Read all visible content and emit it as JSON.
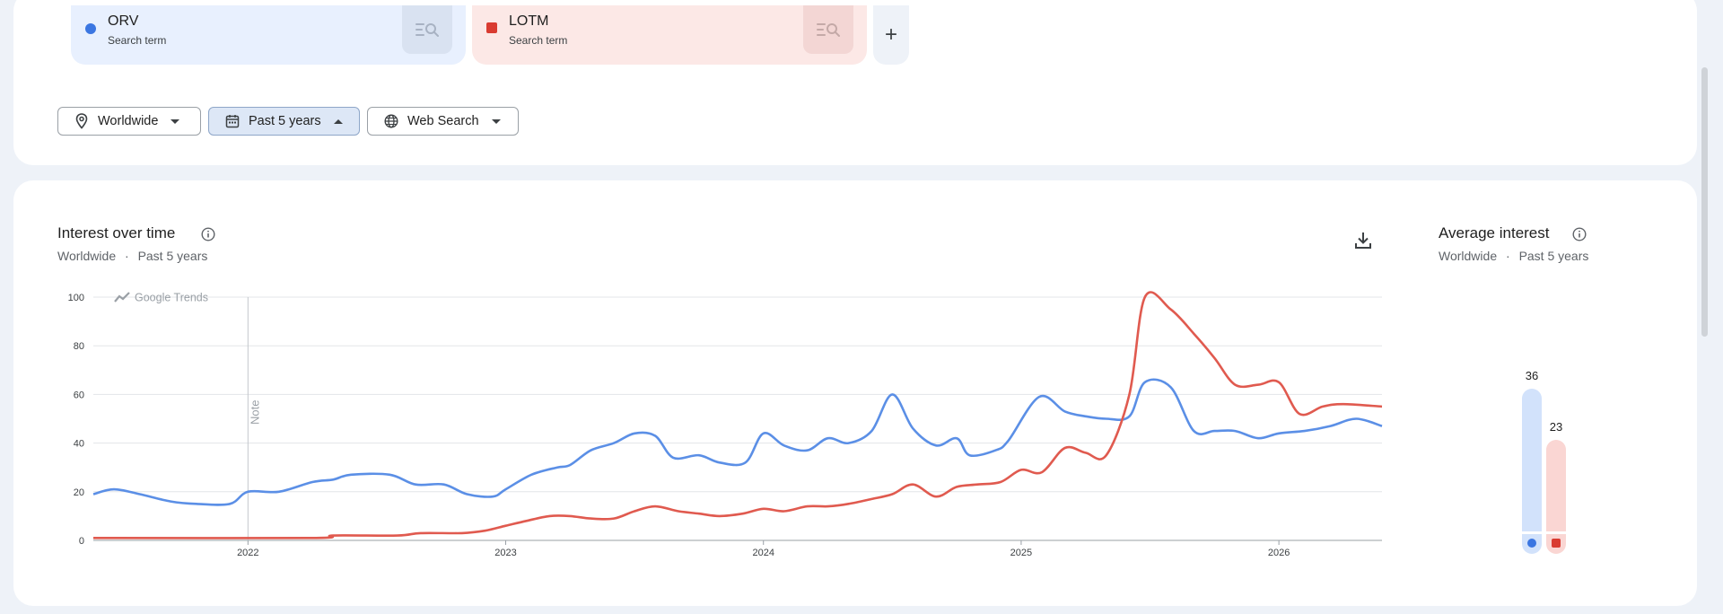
{
  "terms": [
    {
      "name": "ORV",
      "type": "Search term",
      "color": "#3b76e1"
    },
    {
      "name": "LOTM",
      "type": "Search term",
      "color": "#d93b31"
    }
  ],
  "add_term_label": "+",
  "filters": {
    "location": "Worldwide",
    "time_range": "Past 5 years",
    "property": "Web Search"
  },
  "interest_over_time": {
    "title": "Interest over time",
    "location": "Worldwide",
    "separator": "·",
    "time_range": "Past 5 years",
    "watermark": "Google Trends",
    "note_label": "Note",
    "icons": [
      "info-icon",
      "download-icon",
      "trend-logo-icon"
    ]
  },
  "average_interest": {
    "title": "Average interest",
    "location": "Worldwide",
    "separator": "·",
    "time_range": "Past 5 years",
    "values": [
      {
        "term": "ORV",
        "value": 36,
        "color": "#3b76e1",
        "bar_color": "#d2e2fb"
      },
      {
        "term": "LOTM",
        "value": 23,
        "color": "#d93b31",
        "bar_color": "#fad6d3"
      }
    ]
  },
  "chart_data": {
    "type": "line",
    "y_ticks": [
      0,
      20,
      40,
      60,
      80,
      100
    ],
    "ylim": [
      0,
      100
    ],
    "x_tick_labels": [
      "2022",
      "2023",
      "2024",
      "2025",
      "2026"
    ],
    "x_ticks": [
      2022.0,
      2023.0,
      2024.0,
      2025.0,
      2026.0
    ],
    "xlim": [
      2021.4,
      2026.4
    ],
    "note_x": 2022.0,
    "grid": true,
    "series": [
      {
        "name": "ORV",
        "color": "#5b8fe6",
        "points": [
          [
            2021.4,
            19
          ],
          [
            2021.48,
            21
          ],
          [
            2021.58,
            19
          ],
          [
            2021.7,
            16
          ],
          [
            2021.8,
            15
          ],
          [
            2021.93,
            15
          ],
          [
            2022.0,
            20
          ],
          [
            2022.12,
            20
          ],
          [
            2022.25,
            24
          ],
          [
            2022.33,
            25
          ],
          [
            2022.4,
            27
          ],
          [
            2022.55,
            27
          ],
          [
            2022.65,
            23
          ],
          [
            2022.76,
            23
          ],
          [
            2022.85,
            19
          ],
          [
            2022.95,
            18
          ],
          [
            2023.0,
            21
          ],
          [
            2023.1,
            27
          ],
          [
            2023.2,
            30
          ],
          [
            2023.25,
            31
          ],
          [
            2023.33,
            37
          ],
          [
            2023.42,
            40
          ],
          [
            2023.5,
            44
          ],
          [
            2023.58,
            43
          ],
          [
            2023.65,
            34
          ],
          [
            2023.75,
            35
          ],
          [
            2023.83,
            32
          ],
          [
            2023.93,
            32
          ],
          [
            2024.0,
            44
          ],
          [
            2024.08,
            39
          ],
          [
            2024.17,
            37
          ],
          [
            2024.25,
            42
          ],
          [
            2024.33,
            40
          ],
          [
            2024.42,
            45
          ],
          [
            2024.5,
            60
          ],
          [
            2024.58,
            46
          ],
          [
            2024.67,
            39
          ],
          [
            2024.75,
            42
          ],
          [
            2024.8,
            35
          ],
          [
            2024.9,
            37
          ],
          [
            2024.95,
            41
          ],
          [
            2025.07,
            59
          ],
          [
            2025.17,
            53
          ],
          [
            2025.25,
            51
          ],
          [
            2025.33,
            50
          ],
          [
            2025.42,
            51
          ],
          [
            2025.48,
            65
          ],
          [
            2025.58,
            63
          ],
          [
            2025.67,
            45
          ],
          [
            2025.75,
            45
          ],
          [
            2025.83,
            45
          ],
          [
            2025.92,
            42
          ],
          [
            2026.0,
            44
          ],
          [
            2026.1,
            45
          ],
          [
            2026.2,
            47
          ],
          [
            2026.3,
            50
          ],
          [
            2026.4,
            47
          ]
        ]
      },
      {
        "name": "LOTM",
        "color": "#e05a4f",
        "points": [
          [
            2021.4,
            1
          ],
          [
            2022.25,
            1
          ],
          [
            2022.33,
            2
          ],
          [
            2022.58,
            2
          ],
          [
            2022.67,
            3
          ],
          [
            2022.83,
            3
          ],
          [
            2022.92,
            4
          ],
          [
            2023.0,
            6
          ],
          [
            2023.08,
            8
          ],
          [
            2023.17,
            10
          ],
          [
            2023.25,
            10
          ],
          [
            2023.33,
            9
          ],
          [
            2023.42,
            9
          ],
          [
            2023.5,
            12
          ],
          [
            2023.58,
            14
          ],
          [
            2023.67,
            12
          ],
          [
            2023.75,
            11
          ],
          [
            2023.83,
            10
          ],
          [
            2023.92,
            11
          ],
          [
            2024.0,
            13
          ],
          [
            2024.08,
            12
          ],
          [
            2024.17,
            14
          ],
          [
            2024.25,
            14
          ],
          [
            2024.33,
            15
          ],
          [
            2024.42,
            17
          ],
          [
            2024.5,
            19
          ],
          [
            2024.58,
            23
          ],
          [
            2024.67,
            18
          ],
          [
            2024.75,
            22
          ],
          [
            2024.83,
            23
          ],
          [
            2024.92,
            24
          ],
          [
            2025.0,
            29
          ],
          [
            2025.08,
            28
          ],
          [
            2025.17,
            38
          ],
          [
            2025.25,
            36
          ],
          [
            2025.33,
            35
          ],
          [
            2025.42,
            60
          ],
          [
            2025.48,
            100
          ],
          [
            2025.58,
            95
          ],
          [
            2025.67,
            85
          ],
          [
            2025.75,
            75
          ],
          [
            2025.83,
            64
          ],
          [
            2025.92,
            64
          ],
          [
            2026.0,
            65
          ],
          [
            2026.08,
            52
          ],
          [
            2026.17,
            55
          ],
          [
            2026.25,
            56
          ],
          [
            2026.4,
            55
          ]
        ]
      }
    ]
  }
}
